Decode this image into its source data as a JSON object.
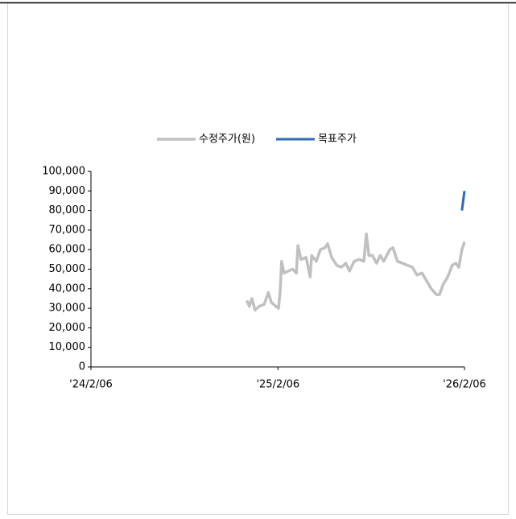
{
  "chart_data": {
    "type": "line",
    "x": [
      "2024-12-07",
      "2024-12-12",
      "2024-12-17",
      "2024-12-23",
      "2024-12-31",
      "2025-01-10",
      "2025-01-18",
      "2025-01-24",
      "2025-02-02",
      "2025-02-07",
      "2025-02-10",
      "2025-02-13",
      "2025-02-18",
      "2025-02-26",
      "2025-03-07",
      "2025-03-14",
      "2025-03-17",
      "2025-03-23",
      "2025-04-02",
      "2025-04-10",
      "2025-04-13",
      "2025-04-22",
      "2025-04-30",
      "2025-05-09",
      "2025-05-14",
      "2025-05-22",
      "2025-06-01",
      "2025-06-10",
      "2025-06-19",
      "2025-06-26",
      "2025-07-05",
      "2025-07-15",
      "2025-07-24",
      "2025-07-29",
      "2025-08-03",
      "2025-08-10",
      "2025-08-18",
      "2025-08-25",
      "2025-09-01",
      "2025-09-13",
      "2025-09-19",
      "2025-09-28",
      "2025-10-08",
      "2025-10-17",
      "2025-10-27",
      "2025-11-05",
      "2025-11-15",
      "2025-11-24",
      "2025-12-03",
      "2025-12-13",
      "2025-12-19",
      "2025-12-26",
      "2026-01-04",
      "2026-01-13",
      "2026-01-20",
      "2026-01-26",
      "2026-02-01",
      "2026-02-06"
    ],
    "series": [
      {
        "name": "수정주가(원)",
        "color": "#c0c0c0",
        "values": [
          34000,
          31000,
          35000,
          29000,
          31000,
          32000,
          38000,
          33000,
          31000,
          30000,
          38000,
          54000,
          48000,
          49000,
          50000,
          48000,
          62000,
          55000,
          56000,
          46000,
          57000,
          54000,
          60000,
          61000,
          63000,
          56000,
          52000,
          51000,
          53000,
          49000,
          54000,
          55000,
          54000,
          68000,
          57000,
          57000,
          53000,
          57000,
          54000,
          60000,
          61000,
          54000,
          53000,
          52000,
          51000,
          47000,
          48000,
          44000,
          40000,
          37000,
          37000,
          42000,
          46000,
          52000,
          53000,
          51000,
          60000,
          64000
        ]
      },
      {
        "name": "목표주가",
        "color": "#2e6aad",
        "values": [
          null,
          null,
          null,
          null,
          null,
          null,
          null,
          null,
          null,
          null,
          null,
          null,
          null,
          null,
          null,
          null,
          null,
          null,
          null,
          null,
          null,
          null,
          null,
          null,
          null,
          null,
          null,
          null,
          null,
          null,
          null,
          null,
          null,
          null,
          null,
          null,
          null,
          null,
          null,
          null,
          null,
          null,
          null,
          null,
          null,
          null,
          null,
          null,
          null,
          null,
          null,
          null,
          null,
          null,
          null,
          null,
          80000,
          90000
        ]
      }
    ],
    "xlim": [
      "2024-02-06",
      "2026-02-06"
    ],
    "xticks": [
      {
        "value": "2024-02-06",
        "label": "'24/2/06"
      },
      {
        "value": "2025-02-06",
        "label": "'25/2/06"
      },
      {
        "value": "2026-02-06",
        "label": "'26/2/06"
      }
    ],
    "ylim": [
      0,
      100000
    ],
    "yticks": [
      0,
      {
        "value": 10000,
        "label": "10,000"
      },
      {
        "value": 20000,
        "label": "20,000"
      },
      {
        "value": 30000,
        "label": "30,000"
      },
      {
        "value": 40000,
        "label": "40,000"
      },
      {
        "value": 50000,
        "label": "50,000"
      },
      {
        "value": 60000,
        "label": "60,000"
      },
      {
        "value": 70000,
        "label": "70,000"
      },
      {
        "value": 80000,
        "label": "80,000"
      },
      {
        "value": 90000,
        "label": "90,000"
      },
      {
        "value": 100000,
        "label": "100,000"
      }
    ],
    "grid": false,
    "legend": "top"
  }
}
